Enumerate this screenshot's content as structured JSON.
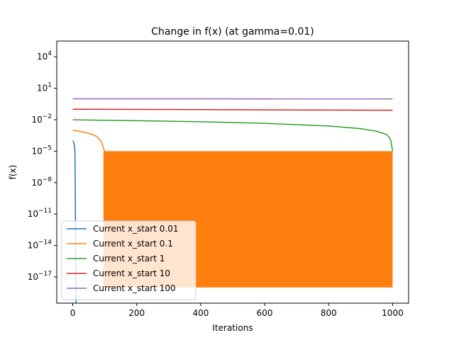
{
  "chart_data": {
    "type": "line",
    "title": "Change in f(x) (at gamma=0.01)",
    "xlabel": "Iterations",
    "ylabel": "f(x)",
    "xlim": [
      -50,
      1050
    ],
    "ylim_exponent": [
      -19.5,
      5.5
    ],
    "y_scale": "log",
    "x_ticks": [
      0,
      200,
      400,
      600,
      800,
      1000
    ],
    "x_tick_labels": [
      "0",
      "200",
      "400",
      "600",
      "800",
      "1000"
    ],
    "y_ticks_exponent": [
      -17,
      -14,
      -11,
      -8,
      -5,
      -2,
      1,
      4
    ],
    "y_tick_labels": [
      {
        "base": "10",
        "exp": "−17"
      },
      {
        "base": "10",
        "exp": "−14"
      },
      {
        "base": "10",
        "exp": "−11"
      },
      {
        "base": "10",
        "exp": "−8"
      },
      {
        "base": "10",
        "exp": "−5"
      },
      {
        "base": "10",
        "exp": "−2"
      },
      {
        "base": "10",
        "exp": "1"
      },
      {
        "base": "10",
        "exp": "4"
      }
    ],
    "grid": false,
    "legend_position": "lower-left",
    "series": [
      {
        "name": "Current x_start 0.01",
        "color": "#1f77b4",
        "x": [
          0,
          2,
          4,
          6,
          7,
          8,
          9,
          10
        ],
        "y": [
          0.0001,
          8e-05,
          5e-05,
          2e-05,
          5e-06,
          1e-09,
          1e-15,
          1e-20
        ]
      },
      {
        "name": "Current x_start 0.1",
        "color": "#ff7f0e",
        "x": [
          0,
          20,
          40,
          60,
          75,
          85,
          92,
          96,
          100
        ],
        "y": [
          0.001,
          0.0008,
          0.0006,
          0.0004,
          0.00025,
          0.00012,
          5e-05,
          2e-05,
          1e-05
        ],
        "oscillation": {
          "x_start": 96,
          "x_end": 1000,
          "y_high": 1e-05,
          "y_low": 1e-18
        }
      },
      {
        "name": "Current x_start 1",
        "color": "#2ca02c",
        "x": [
          0,
          200,
          400,
          600,
          800,
          900,
          950,
          980,
          990,
          995,
          1000
        ],
        "y": [
          0.0098,
          0.0081,
          0.0064,
          0.0045,
          0.0025,
          0.0014,
          0.0008,
          0.0004,
          0.0002,
          9e-05,
          1e-05
        ]
      },
      {
        "name": "Current x_start 10",
        "color": "#d62728",
        "x": [
          0,
          1000
        ],
        "y": [
          0.1,
          0.08
        ]
      },
      {
        "name": "Current x_start 100",
        "color": "#9467bd",
        "x": [
          0,
          1000
        ],
        "y": [
          0.98,
          0.97
        ]
      }
    ]
  }
}
